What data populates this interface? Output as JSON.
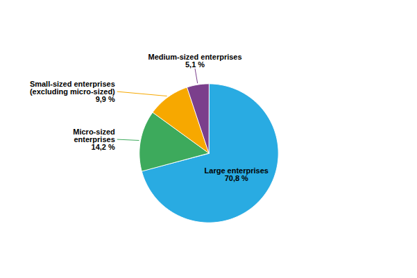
{
  "chart_data": {
    "type": "pie",
    "categories": [
      "Large enterprises",
      "Micro-sized\nenterprises",
      "Small-sized enterprises\n(excluding micro-sized)",
      "Medium-sized enterprises"
    ],
    "values": [
      70.8,
      14.2,
      9.9,
      5.1
    ],
    "value_labels": [
      "70,8 %",
      "14,2 %",
      "9,9 %",
      "5,1 %"
    ],
    "colors": [
      "#29ABE2",
      "#3DAA5C",
      "#F7A800",
      "#7B3F8C"
    ]
  }
}
